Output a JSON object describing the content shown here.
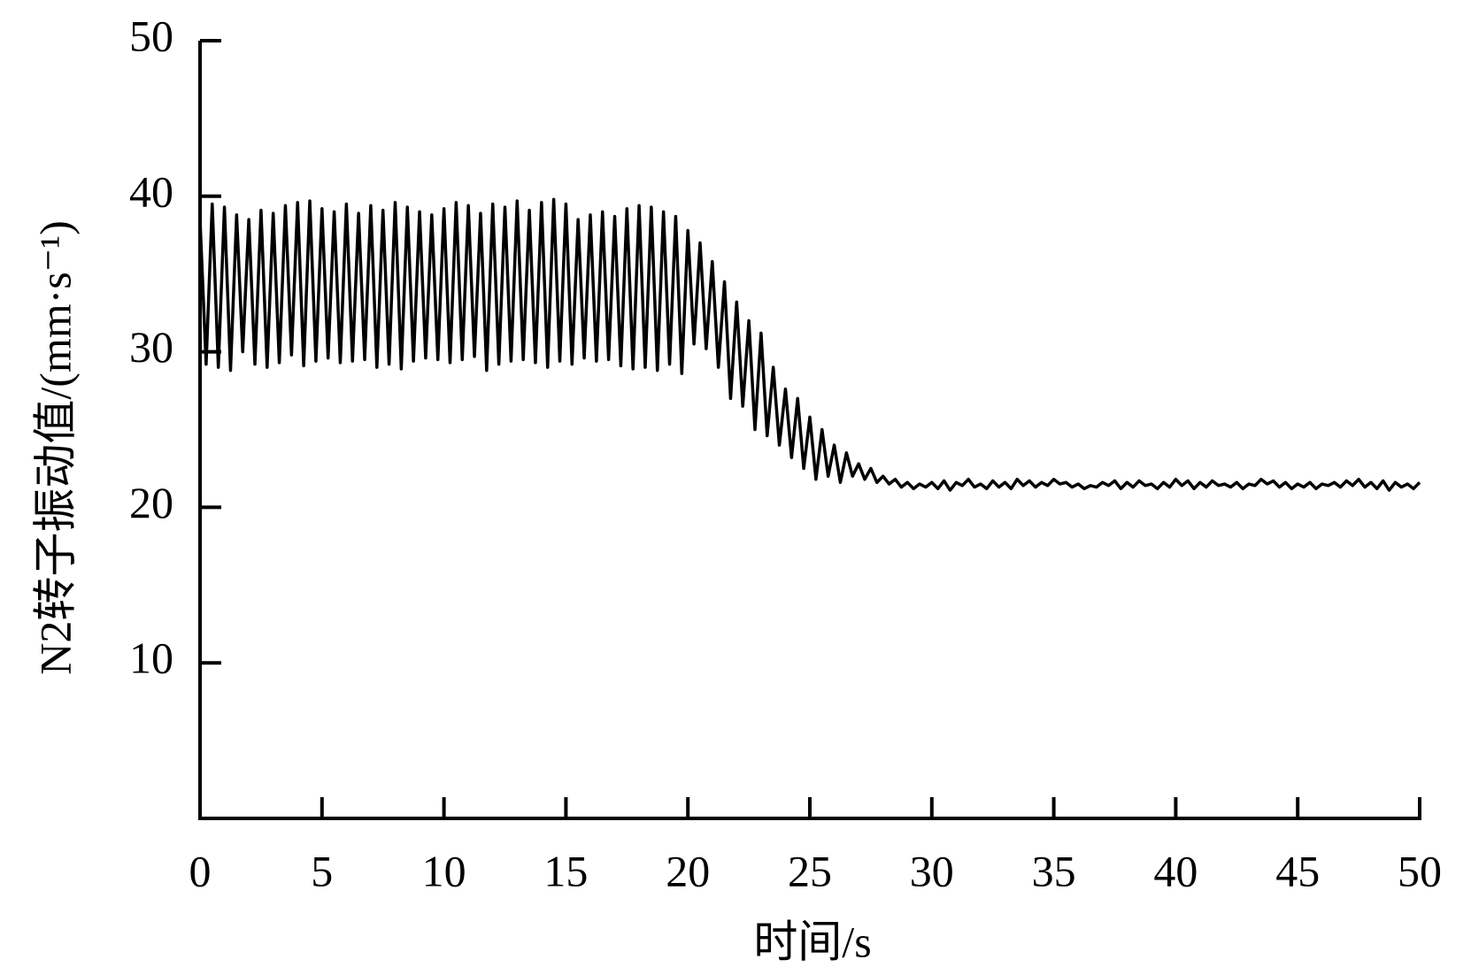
{
  "chart_data": {
    "type": "line",
    "x_label": "时间/s",
    "y_label": "N2转子振动值/(mm·s⁻¹)",
    "color": "#000000",
    "xlim": [
      0,
      50
    ],
    "ylim": [
      0,
      50
    ],
    "xticks": [
      0,
      5,
      10,
      15,
      20,
      25,
      30,
      35,
      40,
      45,
      50
    ],
    "yticks": [
      10,
      20,
      30,
      40,
      50
    ],
    "grid": false,
    "x": [
      0,
      0.25,
      0.5,
      0.75,
      1,
      1.25,
      1.5,
      1.75,
      2,
      2.25,
      2.5,
      2.75,
      3,
      3.25,
      3.5,
      3.75,
      4,
      4.25,
      4.5,
      4.75,
      5,
      5.25,
      5.5,
      5.75,
      6,
      6.25,
      6.5,
      6.75,
      7,
      7.25,
      7.5,
      7.75,
      8,
      8.25,
      8.5,
      8.75,
      9,
      9.25,
      9.5,
      9.75,
      10,
      10.25,
      10.5,
      10.75,
      11,
      11.25,
      11.5,
      11.75,
      12,
      12.25,
      12.5,
      12.75,
      13,
      13.25,
      13.5,
      13.75,
      14,
      14.25,
      14.5,
      14.75,
      15,
      15.25,
      15.5,
      15.75,
      16,
      16.25,
      16.5,
      16.75,
      17,
      17.25,
      17.5,
      17.75,
      18,
      18.25,
      18.5,
      18.75,
      19,
      19.25,
      19.5,
      19.75,
      20,
      20.25,
      20.5,
      20.75,
      21,
      21.25,
      21.5,
      21.75,
      22,
      22.25,
      22.5,
      22.75,
      23,
      23.25,
      23.5,
      23.75,
      24,
      24.25,
      24.5,
      24.75,
      25,
      25.25,
      25.5,
      25.75,
      26,
      26.25,
      26.5,
      26.75,
      27,
      27.25,
      27.5,
      27.75,
      28,
      28.25,
      28.5,
      28.75,
      29,
      29.25,
      29.5,
      29.75,
      30,
      30.25,
      30.5,
      30.75,
      31,
      31.25,
      31.5,
      31.75,
      32,
      32.25,
      32.5,
      32.75,
      33,
      33.25,
      33.5,
      33.75,
      34,
      34.25,
      34.5,
      34.75,
      35,
      35.25,
      35.5,
      35.75,
      36,
      36.25,
      36.5,
      36.75,
      37,
      37.25,
      37.5,
      37.75,
      38,
      38.25,
      38.5,
      38.75,
      39,
      39.25,
      39.5,
      39.75,
      40,
      40.25,
      40.5,
      40.75,
      41,
      41.25,
      41.5,
      41.75,
      42,
      42.25,
      42.5,
      42.75,
      43,
      43.25,
      43.5,
      43.75,
      44,
      44.25,
      44.5,
      44.75,
      45,
      45.25,
      45.5,
      45.75,
      46,
      46.25,
      46.5,
      46.75,
      47,
      47.25,
      47.5,
      47.75,
      48,
      48.25,
      48.5,
      48.75,
      49,
      49.25,
      49.5,
      49.75,
      50
    ],
    "values": [
      38.5,
      29.2,
      39.5,
      29.0,
      39.3,
      28.8,
      38.8,
      30.0,
      38.5,
      29.2,
      39.1,
      29.0,
      38.9,
      29.3,
      39.4,
      29.8,
      39.6,
      29.1,
      39.7,
      29.4,
      39.2,
      29.6,
      39.0,
      29.3,
      39.5,
      29.4,
      38.9,
      29.5,
      39.4,
      29.0,
      39.1,
      29.2,
      39.6,
      28.9,
      39.3,
      29.4,
      39.0,
      29.6,
      38.8,
      29.5,
      39.2,
      29.3,
      39.6,
      29.5,
      39.4,
      29.7,
      38.9,
      28.8,
      39.5,
      29.2,
      39.3,
      29.4,
      39.7,
      29.5,
      39.1,
      29.3,
      39.6,
      29.0,
      39.8,
      29.4,
      39.5,
      29.2,
      38.5,
      29.6,
      38.8,
      29.4,
      39.0,
      29.5,
      38.7,
      29.1,
      39.2,
      28.9,
      39.4,
      29.0,
      39.3,
      28.8,
      39.0,
      29.2,
      38.7,
      28.6,
      37.8,
      30.5,
      37.0,
      30.2,
      35.8,
      29.0,
      34.5,
      27.0,
      33.2,
      26.5,
      32.0,
      25.0,
      31.2,
      24.6,
      29.0,
      24.0,
      27.6,
      23.2,
      27.0,
      22.5,
      25.8,
      21.8,
      25.0,
      22.0,
      24.0,
      21.6,
      23.5,
      22.0,
      22.8,
      21.8,
      22.5,
      21.6,
      22.0,
      21.5,
      21.8,
      21.3,
      21.6,
      21.2,
      21.5,
      21.3,
      21.6,
      21.2,
      21.7,
      21.1,
      21.6,
      21.4,
      21.8,
      21.3,
      21.5,
      21.2,
      21.7,
      21.3,
      21.6,
      21.2,
      21.8,
      21.4,
      21.7,
      21.3,
      21.6,
      21.4,
      21.8,
      21.5,
      21.6,
      21.3,
      21.5,
      21.2,
      21.4,
      21.3,
      21.6,
      21.4,
      21.7,
      21.2,
      21.6,
      21.3,
      21.7,
      21.4,
      21.5,
      21.2,
      21.6,
      21.3,
      21.8,
      21.4,
      21.7,
      21.2,
      21.6,
      21.3,
      21.7,
      21.4,
      21.5,
      21.3,
      21.6,
      21.2,
      21.5,
      21.4,
      21.8,
      21.5,
      21.7,
      21.3,
      21.6,
      21.2,
      21.5,
      21.3,
      21.6,
      21.2,
      21.5,
      21.4,
      21.6,
      21.3,
      21.7,
      21.4,
      21.8,
      21.3,
      21.6,
      21.2,
      21.7,
      21.1,
      21.6,
      21.3,
      21.5,
      21.2,
      21.6
    ]
  }
}
